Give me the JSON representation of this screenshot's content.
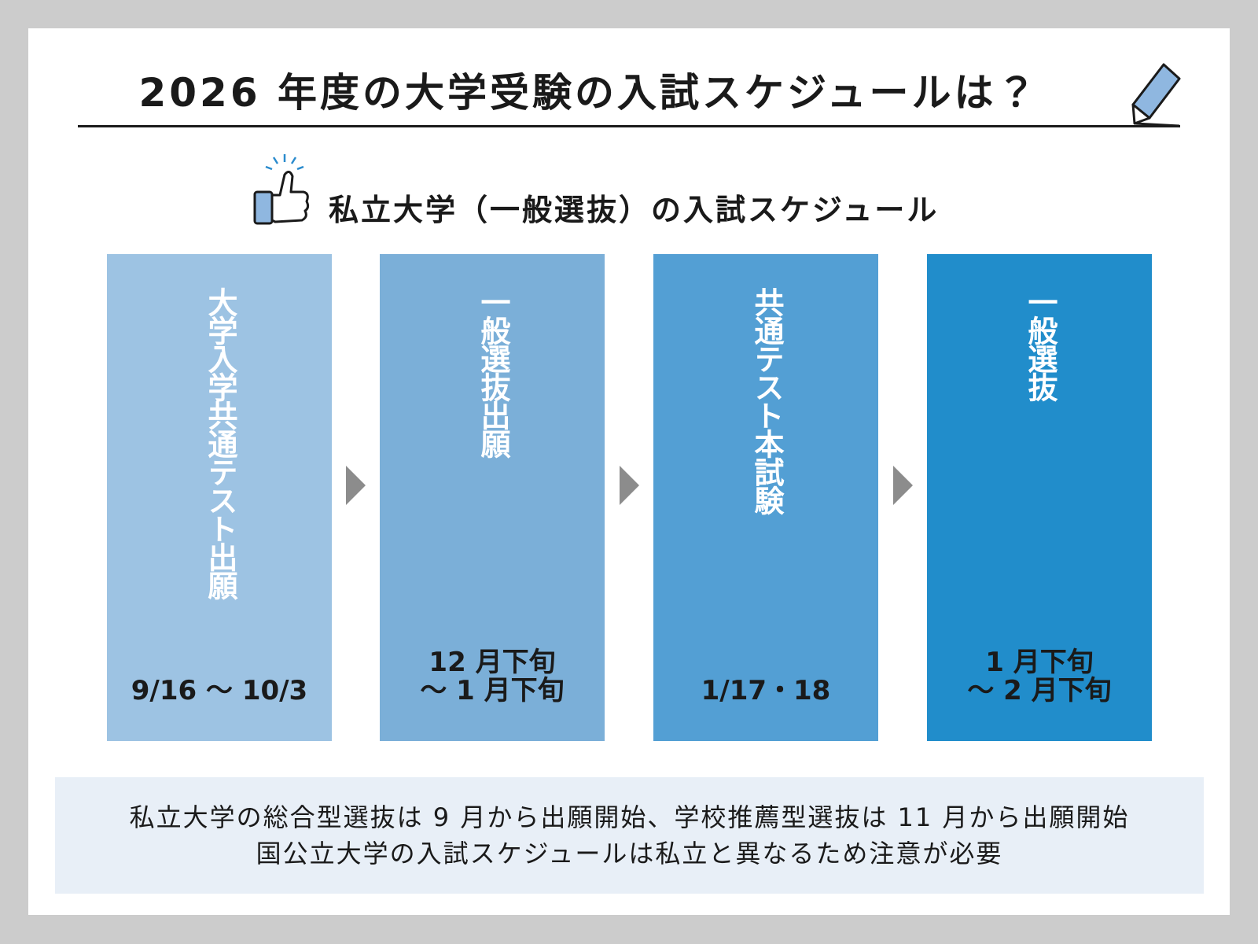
{
  "header": {
    "title": "2026 年度の大学受験の入試スケジュールは？"
  },
  "subtitle": "私立大学（一般選抜）の入試スケジュール",
  "steps": [
    {
      "label": "大学入学共通テスト出願",
      "date": [
        "9/16 ～ 10/3"
      ],
      "color": "#9dc3e3"
    },
    {
      "label": "一般選抜出願",
      "date": [
        "12 月下旬",
        "～ 1 月下旬"
      ],
      "color": "#7bafd8"
    },
    {
      "label": "共通テスト本試験",
      "date": [
        "1/17・18"
      ],
      "color": "#539fd4"
    },
    {
      "label": "一般選抜",
      "date": [
        "1 月下旬",
        "～ 2 月下旬"
      ],
      "color": "#218dcb"
    }
  ],
  "note": [
    "私立大学の総合型選抜は 9 月から出願開始、学校推薦型選抜は 11 月から出願開始",
    "国公立大学の入試スケジュールは私立と異なるため注意が必要"
  ]
}
